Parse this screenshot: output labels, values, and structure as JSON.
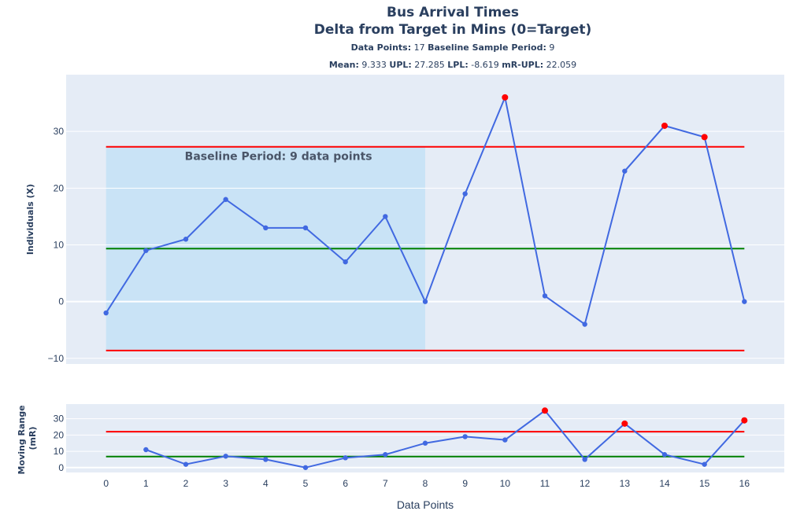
{
  "chart_data": [
    {
      "type": "line",
      "panel": "individuals",
      "title": "Bus Arrival Times",
      "subtitle": "Delta from Target in Mins (0=Target)",
      "info_line1": {
        "label1": "Data Points:",
        "value1": "17",
        "label2": "Baseline Sample Period:",
        "value2": "9"
      },
      "info_line2": {
        "label1": "Mean:",
        "value1": "9.333",
        "label2": "UPL:",
        "value2": "27.285",
        "label3": "LPL:",
        "value3": "-8.619",
        "label4": "mR-UPL:",
        "value4": "22.059"
      },
      "ylabel": "Individuals (X)",
      "x": [
        0,
        1,
        2,
        3,
        4,
        5,
        6,
        7,
        8,
        9,
        10,
        11,
        12,
        13,
        14,
        15,
        16
      ],
      "y": [
        -2,
        9,
        11,
        18,
        13,
        13,
        7,
        15,
        0,
        19,
        36,
        1,
        -4,
        23,
        31,
        29,
        0
      ],
      "out_of_limits": [
        10,
        14,
        15
      ],
      "mean": 9.333,
      "upl": 27.285,
      "lpl": -8.619,
      "baseline_region": {
        "x_start": 0,
        "x_end": 8
      },
      "annotation": "Baseline Period: 9 data points",
      "yticks": [
        "−10",
        "0",
        "10",
        "20",
        "30"
      ],
      "ytick_values": [
        -10,
        0,
        10,
        20,
        30
      ],
      "ylim": [
        -11,
        40
      ],
      "xlim": [
        -1,
        17
      ],
      "grid": true,
      "colors": {
        "line": "#4169e1",
        "limits": "#ff0000",
        "mean": "#008000",
        "baseline": "#c9e3f6",
        "background": "#e5ecf6",
        "alert": "#ff0000"
      }
    },
    {
      "type": "line",
      "panel": "moving_range",
      "ylabel": "Moving Range (mR)",
      "ylabel_line1": "Moving Range",
      "ylabel_line2": "(mR)",
      "xlabel": "Data Points",
      "x": [
        1,
        2,
        3,
        4,
        5,
        6,
        7,
        8,
        9,
        10,
        11,
        12,
        13,
        14,
        15,
        16
      ],
      "y": [
        11,
        2,
        7,
        5,
        0,
        6,
        8,
        15,
        19,
        17,
        35,
        5,
        27,
        8,
        2,
        29
      ],
      "out_of_limits": [
        11,
        13,
        16
      ],
      "mean": 6.75,
      "upl": 22.059,
      "xticks": [
        "0",
        "1",
        "2",
        "3",
        "4",
        "5",
        "6",
        "7",
        "8",
        "9",
        "10",
        "11",
        "12",
        "13",
        "14",
        "15",
        "16"
      ],
      "yticks": [
        "0",
        "10",
        "20",
        "30"
      ],
      "ytick_values": [
        0,
        10,
        20,
        30
      ],
      "ylim": [
        -3,
        39
      ],
      "xlim": [
        -1,
        17
      ],
      "grid": true
    }
  ]
}
